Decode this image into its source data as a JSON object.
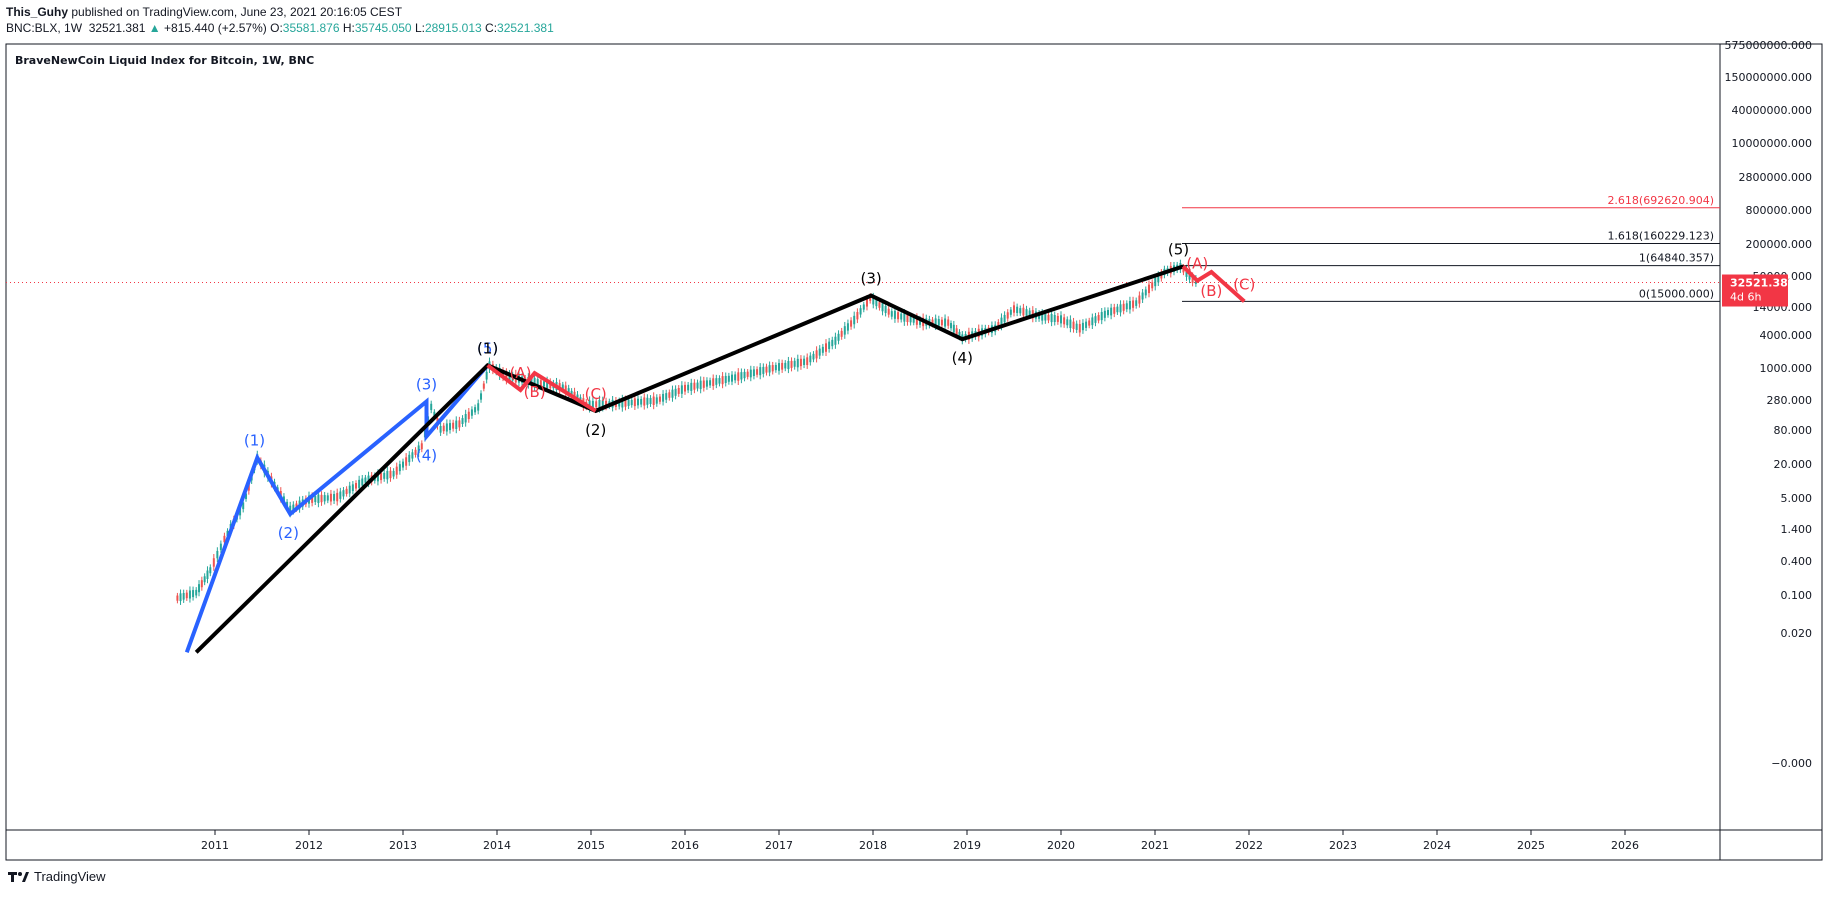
{
  "header": {
    "author": "This_Guhy",
    "published": " published on TradingView.com, June 23, 2021 20:16:05 CEST",
    "symbol": "BNC:BLX, 1W",
    "last": "32521.381",
    "change_arrow": "▲",
    "change": "+815.440 (+2.57%)",
    "o_label": "O:",
    "o": "35581.876",
    "h_label": "H:",
    "h": "35745.050",
    "l_label": "L:",
    "l": "28915.013",
    "c_label": "C:",
    "c": "32521.381"
  },
  "footer": {
    "brand": "TradingView"
  },
  "colors": {
    "blue": "#2962ff",
    "black": "#000000",
    "red": "#f23645",
    "up": "#26a69a",
    "down": "#ef5350",
    "price_tag": "#f23645"
  },
  "chart_data": {
    "type": "line",
    "title": "BraveNewCoin Liquid Index for Bitcoin, 1W, BNC",
    "x_ticks": [
      "2011",
      "2012",
      "2013",
      "2014",
      "2015",
      "2016",
      "2017",
      "2018",
      "2019",
      "2020",
      "2021",
      "2022",
      "2023",
      "2024",
      "2025",
      "2026"
    ],
    "y_ticks": [
      "575000000.000",
      "150000000.000",
      "40000000.000",
      "10000000.000",
      "2800000.000",
      "800000.000",
      "200000.000",
      "50000.000",
      "14000.000",
      "4000.000",
      "1000.000",
      "280.000",
      "80.000",
      "20.000",
      "5.000",
      "1.400",
      "0.400",
      "0.100",
      "0.020",
      "−0.000"
    ],
    "price_tag": {
      "value": "32521.381",
      "countdown": "4d 6h"
    },
    "fib_levels": [
      {
        "label": "2.618(692620.904)",
        "value": 692620.904
      },
      {
        "label": "1.618(160229.123)",
        "value": 160229.123
      },
      {
        "label": "1(64840.357)",
        "value": 64840.357
      },
      {
        "label": "0(15000.000)",
        "value": 15000.0
      }
    ],
    "series": [
      {
        "name": "",
        "kind": "candles",
        "points": [
          [
            2010.6,
            0.08
          ],
          [
            2010.8,
            0.1
          ],
          [
            2010.95,
            0.25
          ],
          [
            2011.1,
            0.9
          ],
          [
            2011.3,
            3.5
          ],
          [
            2011.45,
            25
          ],
          [
            2011.6,
            10
          ],
          [
            2011.8,
            3
          ],
          [
            2012.0,
            4.5
          ],
          [
            2012.3,
            5
          ],
          [
            2012.6,
            10
          ],
          [
            2012.9,
            13
          ],
          [
            2013.2,
            40
          ],
          [
            2013.3,
            200
          ],
          [
            2013.4,
            80
          ],
          [
            2013.6,
            100
          ],
          [
            2013.8,
            200
          ],
          [
            2013.92,
            1100
          ],
          [
            2014.1,
            700
          ],
          [
            2014.4,
            550
          ],
          [
            2014.7,
            450
          ],
          [
            2014.95,
            220
          ],
          [
            2015.3,
            230
          ],
          [
            2015.7,
            260
          ],
          [
            2016.0,
            430
          ],
          [
            2016.5,
            650
          ],
          [
            2016.9,
            950
          ],
          [
            2017.3,
            1300
          ],
          [
            2017.6,
            3000
          ],
          [
            2017.8,
            7000
          ],
          [
            2017.97,
            17000
          ],
          [
            2018.2,
            9000
          ],
          [
            2018.5,
            6500
          ],
          [
            2018.8,
            6300
          ],
          [
            2018.95,
            3400
          ],
          [
            2019.3,
            5000
          ],
          [
            2019.5,
            11000
          ],
          [
            2019.8,
            8000
          ],
          [
            2020.0,
            7200
          ],
          [
            2020.2,
            5000
          ],
          [
            2020.5,
            9500
          ],
          [
            2020.8,
            14000
          ],
          [
            2020.97,
            29000
          ],
          [
            2021.1,
            50000
          ],
          [
            2021.27,
            63000
          ],
          [
            2021.4,
            37000
          ],
          [
            2021.47,
            32521.381
          ]
        ]
      },
      {
        "name": "",
        "kind": "wave",
        "color": "blue",
        "points": [
          [
            2010.7,
            0.0087
          ],
          [
            2011.45,
            25
          ],
          [
            2011.8,
            2.5
          ],
          [
            2013.25,
            250
          ],
          [
            2013.25,
            60
          ],
          [
            2013.9,
            1100
          ]
        ],
        "labels": [
          {
            "text": "(1)",
            "x": 2011.42,
            "y": 25
          },
          {
            "text": "(2)",
            "x": 2011.78,
            "y": 2.5
          },
          {
            "text": "(3)",
            "x": 2013.25,
            "y": 250
          },
          {
            "text": "(4)",
            "x": 2013.25,
            "y": 60
          },
          {
            "text": "(5)",
            "x": 2013.9,
            "y": 1100
          }
        ]
      },
      {
        "name": "",
        "kind": "wave",
        "color": "black",
        "points": [
          [
            2010.8,
            0.0087
          ],
          [
            2013.9,
            1100
          ],
          [
            2015.05,
            170
          ],
          [
            2017.98,
            19000
          ],
          [
            2018.95,
            3200
          ],
          [
            2021.3,
            63000
          ]
        ],
        "labels": [
          {
            "text": "(1)",
            "x": 2013.9,
            "y": 1100
          },
          {
            "text": "(2)",
            "x": 2015.05,
            "y": 170
          },
          {
            "text": "(3)",
            "x": 2017.98,
            "y": 19000
          },
          {
            "text": "(4)",
            "x": 2018.95,
            "y": 3200
          },
          {
            "text": "(5)",
            "x": 2021.25,
            "y": 63000
          }
        ]
      },
      {
        "name": "",
        "kind": "wave",
        "color": "red",
        "points": [
          [
            2013.9,
            1100
          ],
          [
            2014.25,
            400
          ],
          [
            2014.4,
            800
          ],
          [
            2015.05,
            170
          ]
        ],
        "labels": [
          {
            "text": "(A)",
            "x": 2014.25,
            "y": 400
          },
          {
            "text": "(B)",
            "x": 2014.4,
            "y": 800
          },
          {
            "text": "(C)",
            "x": 2015.05,
            "y": 170
          }
        ]
      },
      {
        "name": "",
        "kind": "wave",
        "color": "red",
        "points": [
          [
            2021.3,
            63000
          ],
          [
            2021.45,
            35000
          ],
          [
            2021.6,
            50000
          ],
          [
            2021.95,
            15000
          ]
        ],
        "labels": [
          {
            "text": "(A)",
            "x": 2021.45,
            "y": 35000
          },
          {
            "text": "(B)",
            "x": 2021.6,
            "y": 50000
          },
          {
            "text": "(C)",
            "x": 2021.95,
            "y": 15000
          }
        ]
      }
    ]
  }
}
